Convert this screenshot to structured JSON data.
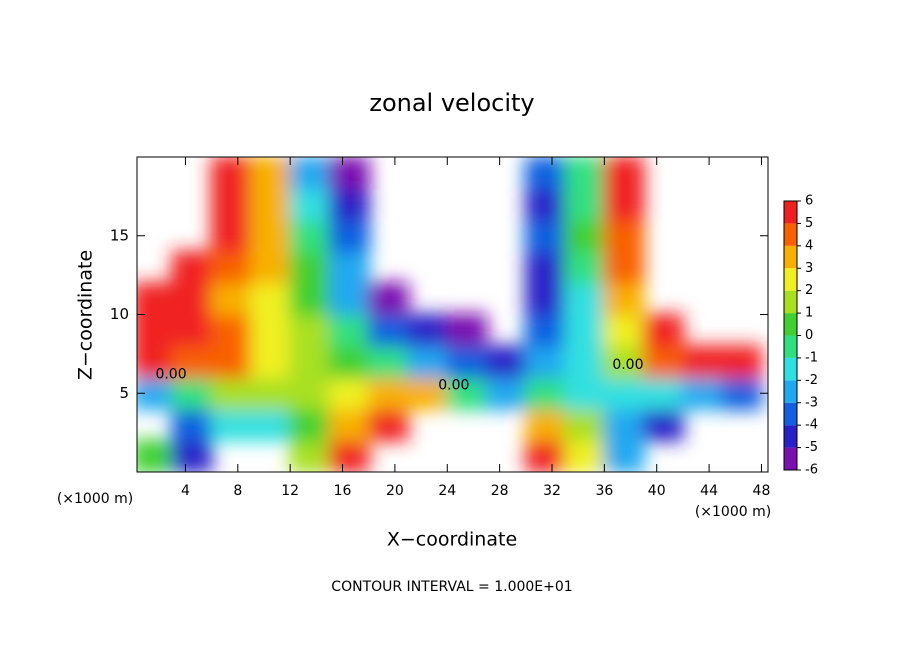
{
  "chart_data": {
    "type": "contour",
    "title": "zonal velocity",
    "xlabel": "X−coordinate",
    "ylabel": "Z−coordinate",
    "x_unit_labels": [
      "(×1000 m)",
      "(×1000 m)"
    ],
    "footer": "CONTOUR INTERVAL = 1.000E+01",
    "xlim": [
      0.3,
      48.5
    ],
    "ylim": [
      0,
      20
    ],
    "xticks": [
      4,
      8,
      12,
      16,
      20,
      24,
      28,
      32,
      36,
      40,
      44,
      48
    ],
    "yticks": [
      5,
      10,
      15
    ],
    "x": [
      1.5,
      4.5,
      7.5,
      10.5,
      13.5,
      16.5,
      19.5,
      22.5,
      25.5,
      28.5,
      31.5,
      34.5,
      37.5,
      40.5,
      43.5,
      46.5
    ],
    "y": [
      1,
      3,
      5,
      7,
      9,
      11,
      13,
      15,
      17,
      19
    ],
    "z": [
      [
        0,
        -5,
        null,
        null,
        1.5,
        5,
        null,
        null,
        null,
        null,
        5.5,
        2,
        -3,
        null,
        null,
        null
      ],
      [
        null,
        -4,
        -2,
        -2,
        0,
        3,
        5.5,
        null,
        null,
        null,
        3,
        1,
        -3,
        -5,
        null,
        null
      ],
      [
        -3,
        -1,
        1,
        1,
        1.5,
        2,
        3,
        3,
        -1,
        -3,
        -1,
        -2,
        -2,
        -2,
        -3,
        -4
      ],
      [
        5,
        4,
        4.5,
        2,
        1,
        0.5,
        -1,
        -3,
        -4,
        -4.5,
        -3,
        -2,
        1,
        4,
        5,
        5
      ],
      [
        5.5,
        5,
        4,
        2.5,
        1,
        -1,
        -4,
        -5,
        -5.5,
        null,
        -4,
        -2,
        2,
        5,
        null,
        null
      ],
      [
        5.5,
        5,
        3.5,
        2,
        0,
        -3,
        -5.5,
        null,
        null,
        null,
        -5,
        -2,
        3,
        null,
        null,
        null
      ],
      [
        null,
        5.5,
        4,
        3,
        0,
        -3,
        null,
        null,
        null,
        null,
        -5,
        -1,
        4,
        null,
        null,
        null
      ],
      [
        null,
        null,
        5,
        3,
        -1,
        -4,
        null,
        null,
        null,
        null,
        -4,
        0,
        4,
        null,
        null,
        null
      ],
      [
        null,
        null,
        5.5,
        3,
        -2,
        -5,
        null,
        null,
        null,
        null,
        -4.5,
        -1,
        5,
        null,
        null,
        null
      ],
      [
        null,
        null,
        5.5,
        3,
        -3,
        -5.5,
        null,
        null,
        null,
        null,
        -4,
        -1,
        5,
        null,
        null,
        null
      ]
    ],
    "colorbar_ticks": [
      -6,
      -5,
      -4,
      -3,
      -2,
      -1,
      0,
      1,
      2,
      3,
      4,
      5,
      6
    ],
    "colorscale": [
      "#7a10b0",
      "#2a20c8",
      "#1060e0",
      "#20a8f0",
      "#30e0e0",
      "#30e080",
      "#40d030",
      "#a8e020",
      "#f0f020",
      "#f8b000",
      "#f86000",
      "#f02020"
    ],
    "contour_labels": [
      {
        "label": "0.00",
        "x": 2.9,
        "y": 6.2
      },
      {
        "label": "0.00",
        "x": 24.5,
        "y": 5.5
      },
      {
        "label": "0.00",
        "x": 37.8,
        "y": 6.8
      }
    ]
  }
}
